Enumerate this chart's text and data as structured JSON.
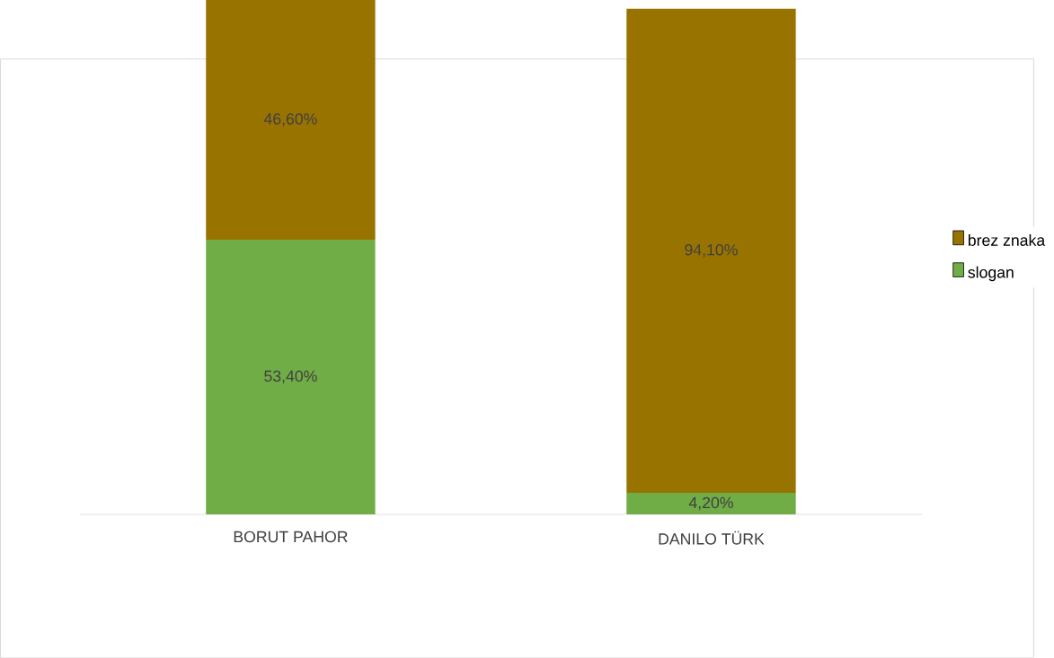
{
  "chart_data": {
    "type": "bar",
    "stacked": true,
    "categories": [
      "BORUT PAHOR",
      "DANILO TÜRK"
    ],
    "legend": "right",
    "series": [
      {
        "name": "slogan",
        "color": "#70ad47",
        "values": [
          53.4,
          4.2
        ],
        "value_labels": [
          "53,40%",
          "4,20%"
        ]
      },
      {
        "name": "brez znaka",
        "color": "#997300",
        "values": [
          46.6,
          94.1
        ],
        "value_labels": [
          "46,60%",
          "94,10%"
        ]
      }
    ]
  }
}
